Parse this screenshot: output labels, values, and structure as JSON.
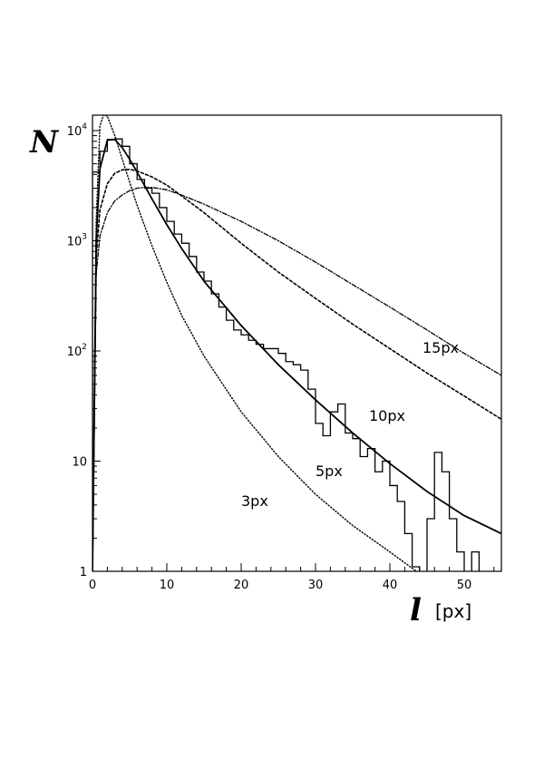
{
  "chart_data": {
    "type": "line",
    "ylabel": "N",
    "xlabel": "l",
    "xunit": "[px]",
    "xlim": [
      0,
      55
    ],
    "ylim": [
      1,
      20000
    ],
    "yscale": "log",
    "grid": false,
    "x_ticks": [
      {
        "value": 0,
        "label": "0"
      },
      {
        "value": 10,
        "label": "10"
      },
      {
        "value": 20,
        "label": "20"
      },
      {
        "value": 30,
        "label": "30"
      },
      {
        "value": 40,
        "label": "40"
      },
      {
        "value": 50,
        "label": "50"
      }
    ],
    "y_ticks": [
      {
        "value": 1,
        "base": "1",
        "exp": ""
      },
      {
        "value": 10,
        "base": "10",
        "exp": ""
      },
      {
        "value": 100,
        "base": "10",
        "exp": "2"
      },
      {
        "value": 1000,
        "base": "10",
        "exp": "3"
      },
      {
        "value": 10000,
        "base": "10",
        "exp": "4"
      }
    ],
    "series": [
      {
        "name": "3px",
        "style": "dotted",
        "x": [
          0,
          0.5,
          1,
          1.5,
          2,
          3,
          4,
          5,
          6,
          8,
          10,
          12,
          15,
          20,
          25,
          30,
          35,
          40,
          45
        ],
        "y": [
          1,
          1500,
          11000,
          14000,
          13500,
          9000,
          5500,
          3400,
          2100,
          900,
          420,
          210,
          90,
          28,
          11,
          5,
          2.6,
          1.5,
          0.85
        ]
      },
      {
        "name": "5px",
        "style": "solid",
        "x": [
          0,
          0.5,
          1,
          2,
          3,
          4,
          5,
          6,
          8,
          10,
          12,
          15,
          20,
          25,
          30,
          35,
          40,
          45,
          50,
          55
        ],
        "y": [
          1,
          1000,
          4500,
          8200,
          8300,
          7000,
          5500,
          4200,
          2400,
          1400,
          850,
          430,
          170,
          75,
          36,
          18,
          9.5,
          5.3,
          3.2,
          2.2
        ]
      },
      {
        "name": "10px",
        "style": "dashed",
        "x": [
          0,
          0.5,
          1,
          2,
          3,
          4,
          5,
          6,
          8,
          10,
          12,
          15,
          20,
          25,
          30,
          35,
          40,
          45,
          50,
          55
        ],
        "y": [
          1,
          700,
          1900,
          3300,
          4100,
          4400,
          4450,
          4300,
          3800,
          3200,
          2550,
          1800,
          950,
          520,
          300,
          175,
          105,
          63,
          39,
          24
        ]
      },
      {
        "name": "15px",
        "style": "dash-dot",
        "x": [
          0,
          0.5,
          1,
          2,
          3,
          4,
          5,
          6,
          7,
          8,
          10,
          12,
          15,
          20,
          25,
          30,
          35,
          40,
          45,
          50,
          55
        ],
        "y": [
          1,
          500,
          1100,
          1800,
          2300,
          2600,
          2850,
          3000,
          3050,
          3050,
          2900,
          2600,
          2150,
          1500,
          1000,
          640,
          400,
          250,
          155,
          95,
          60
        ]
      }
    ],
    "histogram": {
      "bin_width": 1,
      "bin_start": 0,
      "values": [
        4200,
        6500,
        8300,
        8400,
        7200,
        5000,
        3600,
        3000,
        2700,
        2000,
        1500,
        1150,
        950,
        720,
        520,
        430,
        330,
        250,
        190,
        155,
        140,
        125,
        115,
        105,
        105,
        95,
        80,
        75,
        67,
        45,
        22,
        17,
        28,
        33,
        18,
        16,
        11,
        13,
        8,
        10,
        6,
        4.3,
        2.2,
        1.1,
        0.5,
        3.0,
        12,
        8,
        3,
        1.5,
        0.5,
        1.5,
        0.5
      ]
    }
  }
}
